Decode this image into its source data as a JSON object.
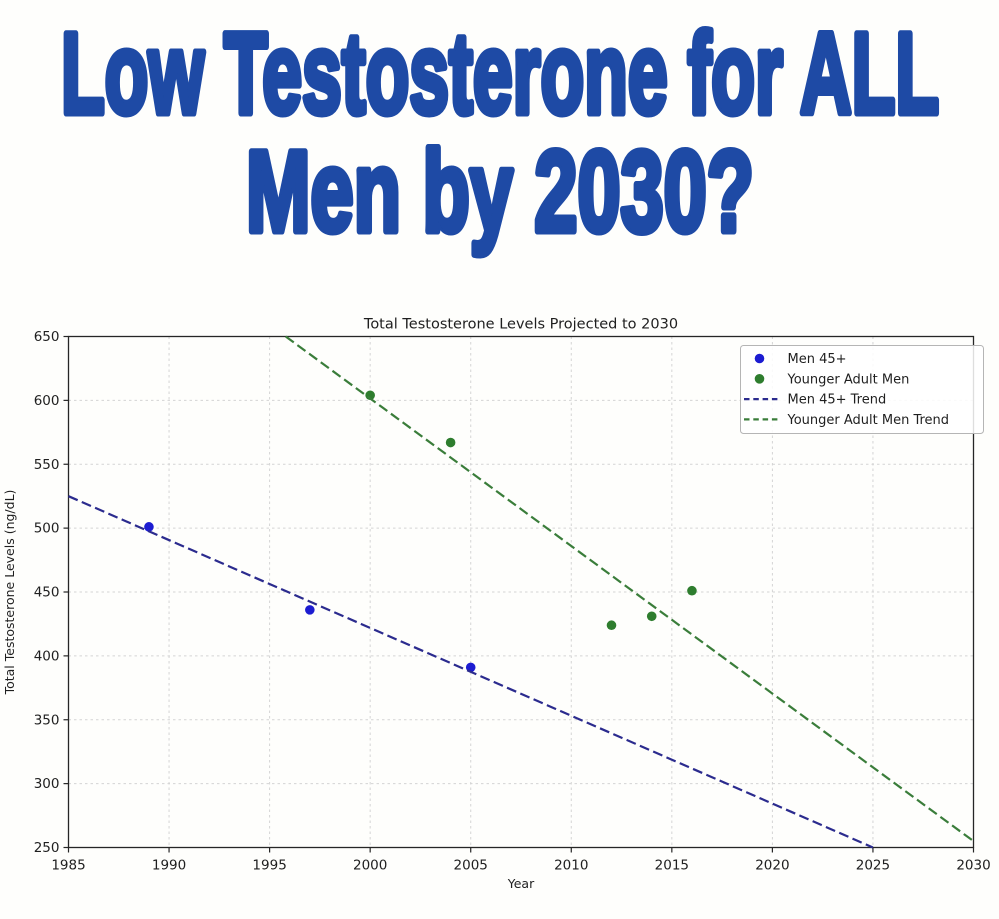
{
  "headline": {
    "line1": "Low Testosterone for ALL",
    "line2": "Men by 2030?",
    "color": "#1e4aa5"
  },
  "chart_data": {
    "type": "scatter",
    "title": "Total Testosterone Levels Projected to 2030",
    "xlabel": "Year",
    "ylabel": "Total Testosterone Levels (ng/dL)",
    "xlim": [
      1985,
      2030
    ],
    "ylim": [
      250,
      650
    ],
    "xticks": [
      1985,
      1990,
      1995,
      2000,
      2005,
      2010,
      2015,
      2020,
      2025,
      2030
    ],
    "yticks": [
      250,
      300,
      350,
      400,
      450,
      500,
      550,
      600,
      650
    ],
    "grid": true,
    "grid_color": "#d4d4d4",
    "spine_color": "#262626",
    "legend_position": "top-right",
    "series": [
      {
        "name": "Men 45+",
        "kind": "scatter",
        "color": "#1c1cd1",
        "points": [
          [
            1989,
            501
          ],
          [
            1997,
            436
          ],
          [
            2005,
            391
          ]
        ]
      },
      {
        "name": "Younger Adult Men",
        "kind": "scatter",
        "color": "#2e7d2e",
        "points": [
          [
            2000,
            604
          ],
          [
            2004,
            567
          ],
          [
            2012,
            424
          ],
          [
            2014,
            431
          ],
          [
            2016,
            451
          ]
        ]
      },
      {
        "name": "Men 45+ Trend",
        "kind": "dashed-line",
        "color": "#2b2b8e",
        "points": [
          [
            1985,
            525
          ],
          [
            2025,
            250
          ]
        ]
      },
      {
        "name": "Younger Adult Men Trend",
        "kind": "dashed-line",
        "color": "#3a7d3a",
        "points": [
          [
            1995.8,
            650
          ],
          [
            2030,
            255
          ]
        ]
      }
    ]
  }
}
